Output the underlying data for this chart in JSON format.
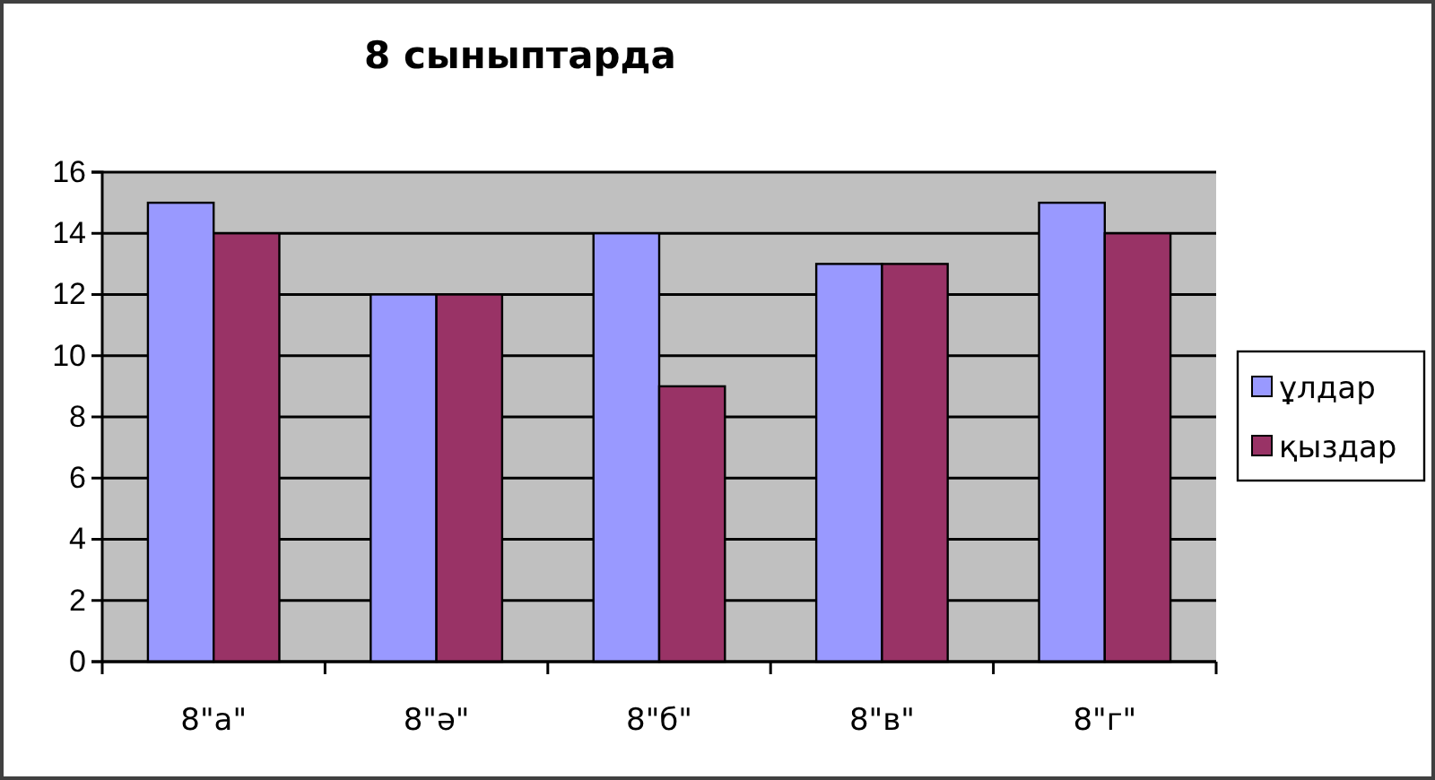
{
  "chart_data": {
    "type": "bar",
    "title": "8 сыныптарда",
    "categories": [
      "8\"а\"",
      "8\"ә\"",
      "8\"б\"",
      "8\"в\"",
      "8\"г\""
    ],
    "series": [
      {
        "name": "ұлдар",
        "color": "#9999ff",
        "values": [
          15,
          12,
          14,
          13,
          15
        ]
      },
      {
        "name": "қыздар",
        "color": "#993366",
        "values": [
          14,
          12,
          9,
          13,
          14
        ]
      }
    ],
    "ylim": [
      0,
      16
    ],
    "yticks": [
      0,
      2,
      4,
      6,
      8,
      10,
      12,
      14,
      16
    ],
    "grid": "y",
    "legend": "right"
  }
}
